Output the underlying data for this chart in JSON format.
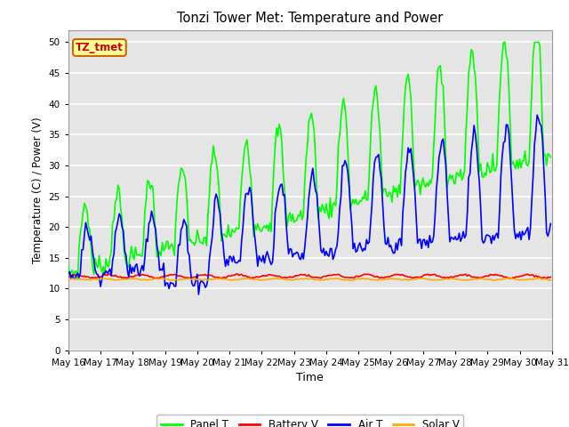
{
  "title": "Tonzi Tower Met: Temperature and Power",
  "xlabel": "Time",
  "ylabel": "Temperature (C) / Power (V)",
  "ylim": [
    0,
    52
  ],
  "yticks": [
    0,
    5,
    10,
    15,
    20,
    25,
    30,
    35,
    40,
    45,
    50
  ],
  "bg_color": "#e8e8e8",
  "plot_bg_color": "#e5e5e5",
  "legend_bg_color": "#ffffff",
  "grid_color": "#ffffff",
  "annotation_text": "TZ_tmet",
  "annotation_bg": "#ffff99",
  "annotation_border": "#cc6600",
  "annotation_text_color": "#cc0000",
  "panel_color": "#00ff00",
  "battery_color": "#ff0000",
  "air_color": "#0000ff",
  "solar_color": "#ffaa00",
  "line_width": 1.2,
  "legend_labels": [
    "Panel T",
    "Battery V",
    "Air T",
    "Solar V"
  ],
  "xtick_labels": [
    "May 16",
    "May 17",
    "May 18",
    "May 19",
    "May 20",
    "May 21",
    "May 22",
    "May 23",
    "May 24",
    "May 25",
    "May 26",
    "May 27",
    "May 28",
    "May 29",
    "May 30",
    "May 31"
  ]
}
